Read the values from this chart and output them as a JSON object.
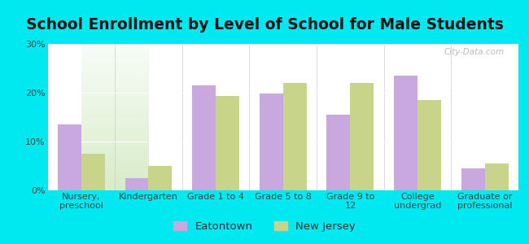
{
  "title": "School Enrollment by Level of School for Male Students",
  "categories": [
    "Nursery,\npreschool",
    "Kindergarten",
    "Grade 1 to 4",
    "Grade 5 to 8",
    "Grade 9 to\n12",
    "College\nundergrad",
    "Graduate or\nprofessional"
  ],
  "eatontown": [
    13.5,
    2.5,
    21.5,
    19.8,
    15.5,
    23.5,
    4.5
  ],
  "new_jersey": [
    7.5,
    5.0,
    19.3,
    22.0,
    22.0,
    18.5,
    5.5
  ],
  "eatontown_color": "#c9a8e0",
  "new_jersey_color": "#cdd eighteen",
  "new_jersey_color2": "#c8d48a",
  "background_outer": "#00e8f0",
  "background_top": "#f8fdf8",
  "background_bottom": "#d8ecc8",
  "ylim": [
    0,
    30
  ],
  "yticks": [
    0,
    10,
    20,
    30
  ],
  "ytick_labels": [
    "0%",
    "10%",
    "20%",
    "30%"
  ],
  "legend_labels": [
    "Eatontown",
    "New Jersey"
  ],
  "bar_width": 0.35,
  "title_fontsize": 13.5,
  "tick_fontsize": 8,
  "legend_fontsize": 9.5
}
